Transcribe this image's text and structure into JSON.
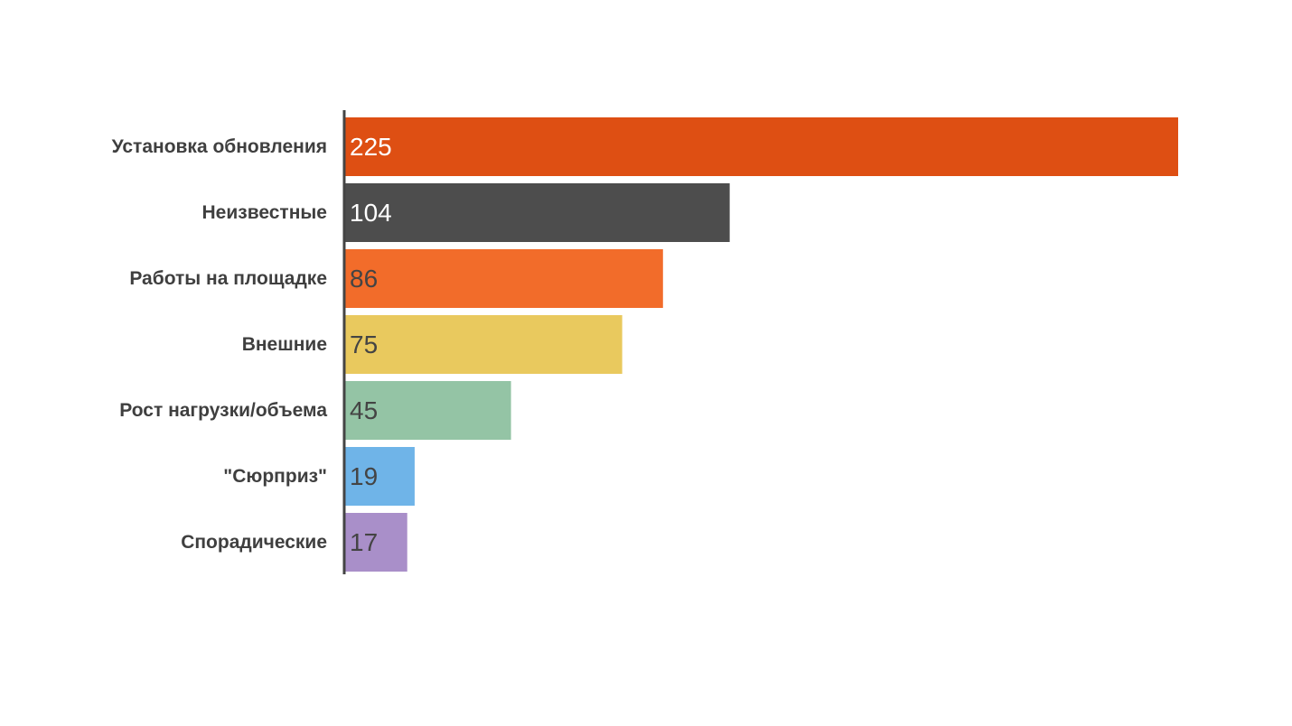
{
  "chart_data": {
    "type": "bar",
    "orientation": "horizontal",
    "title": "",
    "xlabel": "",
    "ylabel": "",
    "categories": [
      "Установка обновления",
      "Неизвестные",
      "Работы на площадке",
      "Внешние",
      "Рост нагрузки/объема",
      "\"Сюрприз\"",
      "Спорадические"
    ],
    "values": [
      225,
      104,
      86,
      75,
      45,
      19,
      17
    ],
    "colors": [
      "#de4f13",
      "#4d4d4d",
      "#f26c2a",
      "#e9c95e",
      "#94c4a5",
      "#6fb4e8",
      "#a98fc9"
    ],
    "value_label_colors": [
      "#ffffff",
      "#ffffff",
      "#444444",
      "#444444",
      "#444444",
      "#444444",
      "#444444"
    ],
    "xlim": [
      0,
      225
    ],
    "grid": false,
    "legend": "none",
    "axis_color": "#444444",
    "label_color": "#3f3f3f"
  }
}
